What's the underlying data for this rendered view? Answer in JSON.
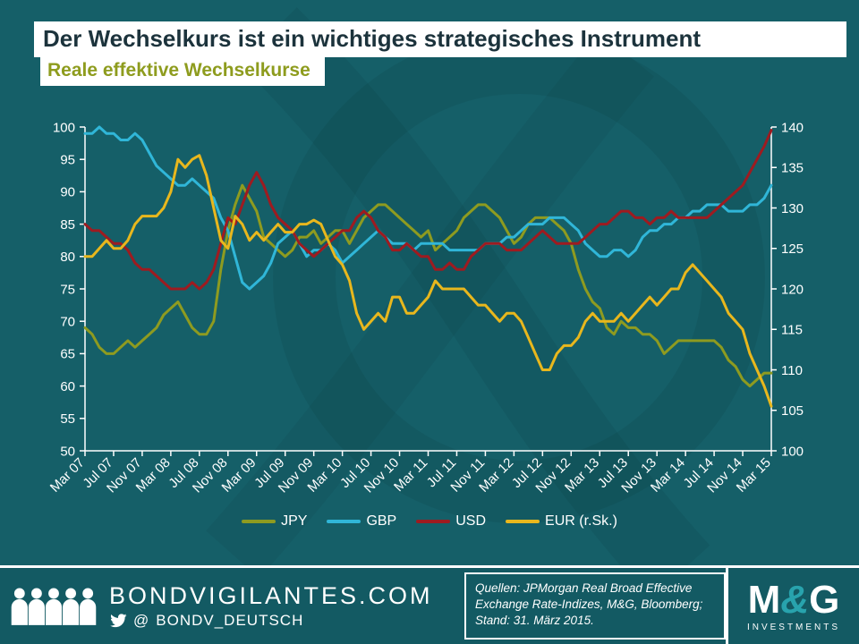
{
  "slide": {
    "title": "Der Wechselkurs ist ein wichtiges strategisches Instrument",
    "subtitle": "Reale effektive Wechselkurse"
  },
  "colors": {
    "background": "#155f68",
    "title_text": "#1c333c",
    "subtitle_text": "#8e9c1e",
    "axis": "#ffffff",
    "jpy": "#8e9b20",
    "gbp": "#30b6d8",
    "usd": "#9e1b20",
    "eur": "#e8b71d"
  },
  "chart_data": {
    "type": "line",
    "title": "Reale effektive Wechselkurse",
    "xlabel": "",
    "ylabel_left": "",
    "ylabel_right": "",
    "grid": false,
    "legend_position": "bottom",
    "left_axis": {
      "min": 50,
      "max": 100,
      "step": 5
    },
    "right_axis": {
      "min": 100,
      "max": 140,
      "step": 5
    },
    "tick_every": 4,
    "x_labels": [
      "Mar 07",
      "Jul 07",
      "Nov 07",
      "Mar 08",
      "Jul 08",
      "Nov 08",
      "Mar 09",
      "Jul 09",
      "Nov 09",
      "Mar 10",
      "Jul 10",
      "Nov 10",
      "Mar 11",
      "Jul 11",
      "Nov 11",
      "Mar 12",
      "Jul 12",
      "Nov 12",
      "Mar 13",
      "Jul 13",
      "Nov 13",
      "Mar 14",
      "Jul 14",
      "Nov 14",
      "Mar 15"
    ],
    "series": [
      {
        "name": "JPY",
        "axis": "left",
        "color": "#8e9b20",
        "values": [
          69,
          68,
          66,
          65,
          65,
          66,
          67,
          66,
          67,
          68,
          69,
          71,
          72,
          73,
          71,
          69,
          68,
          68,
          70,
          78,
          84,
          88,
          91,
          89,
          87,
          83,
          82,
          81,
          80,
          81,
          83,
          83,
          84,
          82,
          83,
          84,
          84,
          82,
          84,
          86,
          87,
          88,
          88,
          87,
          86,
          85,
          84,
          83,
          84,
          81,
          82,
          83,
          84,
          86,
          87,
          88,
          88,
          87,
          86,
          84,
          82,
          83,
          85,
          86,
          86,
          86,
          85,
          84,
          82,
          78,
          75,
          73,
          72,
          69,
          68,
          70,
          69,
          69,
          68,
          68,
          67,
          65,
          66,
          67,
          67,
          67,
          67,
          67,
          67,
          66,
          64,
          63,
          61,
          60,
          61,
          62,
          62
        ]
      },
      {
        "name": "GBP",
        "axis": "left",
        "color": "#30b6d8",
        "values": [
          99,
          99,
          100,
          99,
          99,
          98,
          98,
          99,
          98,
          96,
          94,
          93,
          92,
          91,
          91,
          92,
          91,
          90,
          89,
          86,
          84,
          80,
          76,
          75,
          76,
          77,
          79,
          82,
          83,
          84,
          82,
          80,
          81,
          81,
          82,
          81,
          79,
          80,
          81,
          82,
          83,
          84,
          83,
          82,
          82,
          82,
          81,
          82,
          82,
          82,
          82,
          81,
          81,
          81,
          81,
          81,
          82,
          82,
          82,
          83,
          83,
          84,
          85,
          85,
          85,
          86,
          86,
          86,
          85,
          84,
          82,
          81,
          80,
          80,
          81,
          81,
          80,
          81,
          83,
          84,
          84,
          85,
          85,
          86,
          86,
          87,
          87,
          88,
          88,
          88,
          87,
          87,
          87,
          88,
          88,
          89,
          91
        ]
      },
      {
        "name": "USD",
        "axis": "left",
        "color": "#9e1b20",
        "values": [
          85,
          84,
          84,
          83,
          82,
          82,
          81,
          79,
          78,
          78,
          77,
          76,
          75,
          75,
          75,
          76,
          75,
          76,
          78,
          82,
          86,
          85,
          88,
          91,
          93,
          91,
          88,
          86,
          85,
          84,
          82,
          81,
          80,
          81,
          82,
          83,
          84,
          84,
          86,
          87,
          86,
          84,
          83,
          81,
          81,
          82,
          81,
          80,
          80,
          78,
          78,
          79,
          78,
          78,
          80,
          81,
          82,
          82,
          82,
          81,
          81,
          81,
          82,
          83,
          84,
          83,
          82,
          82,
          82,
          82,
          83,
          84,
          85,
          85,
          86,
          87,
          87,
          86,
          86,
          85,
          86,
          86,
          87,
          86,
          86,
          86,
          86,
          86,
          87,
          88,
          89,
          90,
          91,
          93,
          95,
          97,
          99.5
        ]
      },
      {
        "name": "EUR (r.Sk.)",
        "axis": "right",
        "color": "#e8b71d",
        "values": [
          124,
          124,
          125,
          126,
          125,
          125,
          126,
          128,
          129,
          129,
          129,
          130,
          132,
          136,
          135,
          136,
          136.5,
          134,
          130,
          126,
          125,
          129,
          128,
          126,
          127,
          126,
          127,
          128,
          127,
          127,
          128,
          128,
          128.5,
          128,
          126,
          124,
          123,
          121,
          117,
          115,
          116,
          117,
          116,
          119,
          119,
          117,
          117,
          118,
          119,
          121,
          120,
          120,
          120,
          120,
          119,
          118,
          118,
          117,
          116,
          117,
          117,
          116,
          114,
          112,
          110,
          110,
          112,
          113,
          113,
          114,
          116,
          117,
          116,
          116,
          116,
          117,
          116,
          117,
          118,
          119,
          118,
          119,
          120,
          120,
          122,
          123,
          122,
          121,
          120,
          119,
          117,
          116,
          115,
          112,
          110,
          108,
          105.5
        ]
      }
    ]
  },
  "footer": {
    "site": "BONDVIGILANTES.COM",
    "twitter_at": "@",
    "twitter_handle": "BONDV_DEUTSCH",
    "source_text": "Quellen: JPMorgan Real Broad Effective Exchange Rate-Indizes, M&G, Bloomberg; Stand: 31. März 2015.",
    "logo": {
      "m": "M",
      "amp": "&",
      "g": "G",
      "sub": "INVESTMENTS"
    }
  }
}
